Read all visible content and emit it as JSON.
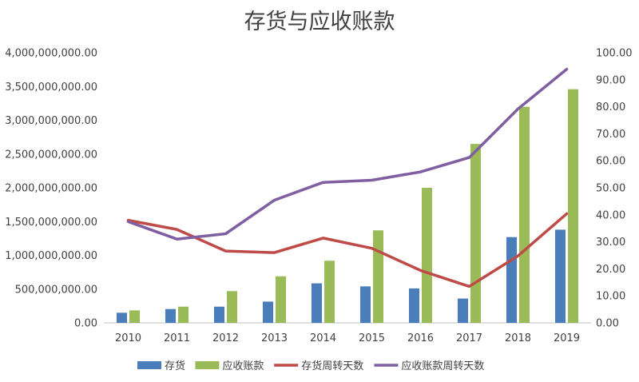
{
  "chart_data": {
    "type": "bar",
    "title": "存货与应收账款",
    "categories": [
      "2010",
      "2011",
      "2012",
      "2013",
      "2014",
      "2015",
      "2016",
      "2017",
      "2018",
      "2019"
    ],
    "series": [
      {
        "name": "存货",
        "type": "bar",
        "axis": "left",
        "color": "#4a7ebb",
        "values": [
          150000000,
          205000000,
          240000000,
          315000000,
          585000000,
          540000000,
          510000000,
          360000000,
          1270000000,
          1380000000
        ]
      },
      {
        "name": "应收账款",
        "type": "bar",
        "axis": "left",
        "color": "#9bbb59",
        "values": [
          185000000,
          240000000,
          470000000,
          690000000,
          920000000,
          1370000000,
          2000000000,
          2650000000,
          3200000000,
          3460000000
        ]
      },
      {
        "name": "存货周转天数",
        "type": "line",
        "axis": "right",
        "color": "#be4b48",
        "values": [
          38.0,
          34.6,
          26.6,
          26.0,
          31.4,
          27.6,
          19.4,
          13.5,
          24.8,
          40.4
        ]
      },
      {
        "name": "应收账款周转天数",
        "type": "line",
        "axis": "right",
        "color": "#7f5fa1",
        "values": [
          37.5,
          31.0,
          33.0,
          45.4,
          52.0,
          52.8,
          55.9,
          61.2,
          79.2,
          93.9
        ]
      }
    ],
    "y_left": {
      "range": [
        0,
        4000000000
      ],
      "ticks": [
        "0.00",
        "500,000,000.00",
        "1,000,000,000.00",
        "1,500,000,000.00",
        "2,000,000,000.00",
        "2,500,000,000.00",
        "3,000,000,000.00",
        "3,500,000,000.00",
        "4,000,000,000.00"
      ]
    },
    "y_right": {
      "range": [
        0,
        100
      ],
      "ticks": [
        "0.00",
        "10.00",
        "20.00",
        "30.00",
        "40.00",
        "50.00",
        "60.00",
        "70.00",
        "80.00",
        "90.00",
        "100.00"
      ]
    },
    "grid": false,
    "legend": "bottom"
  }
}
